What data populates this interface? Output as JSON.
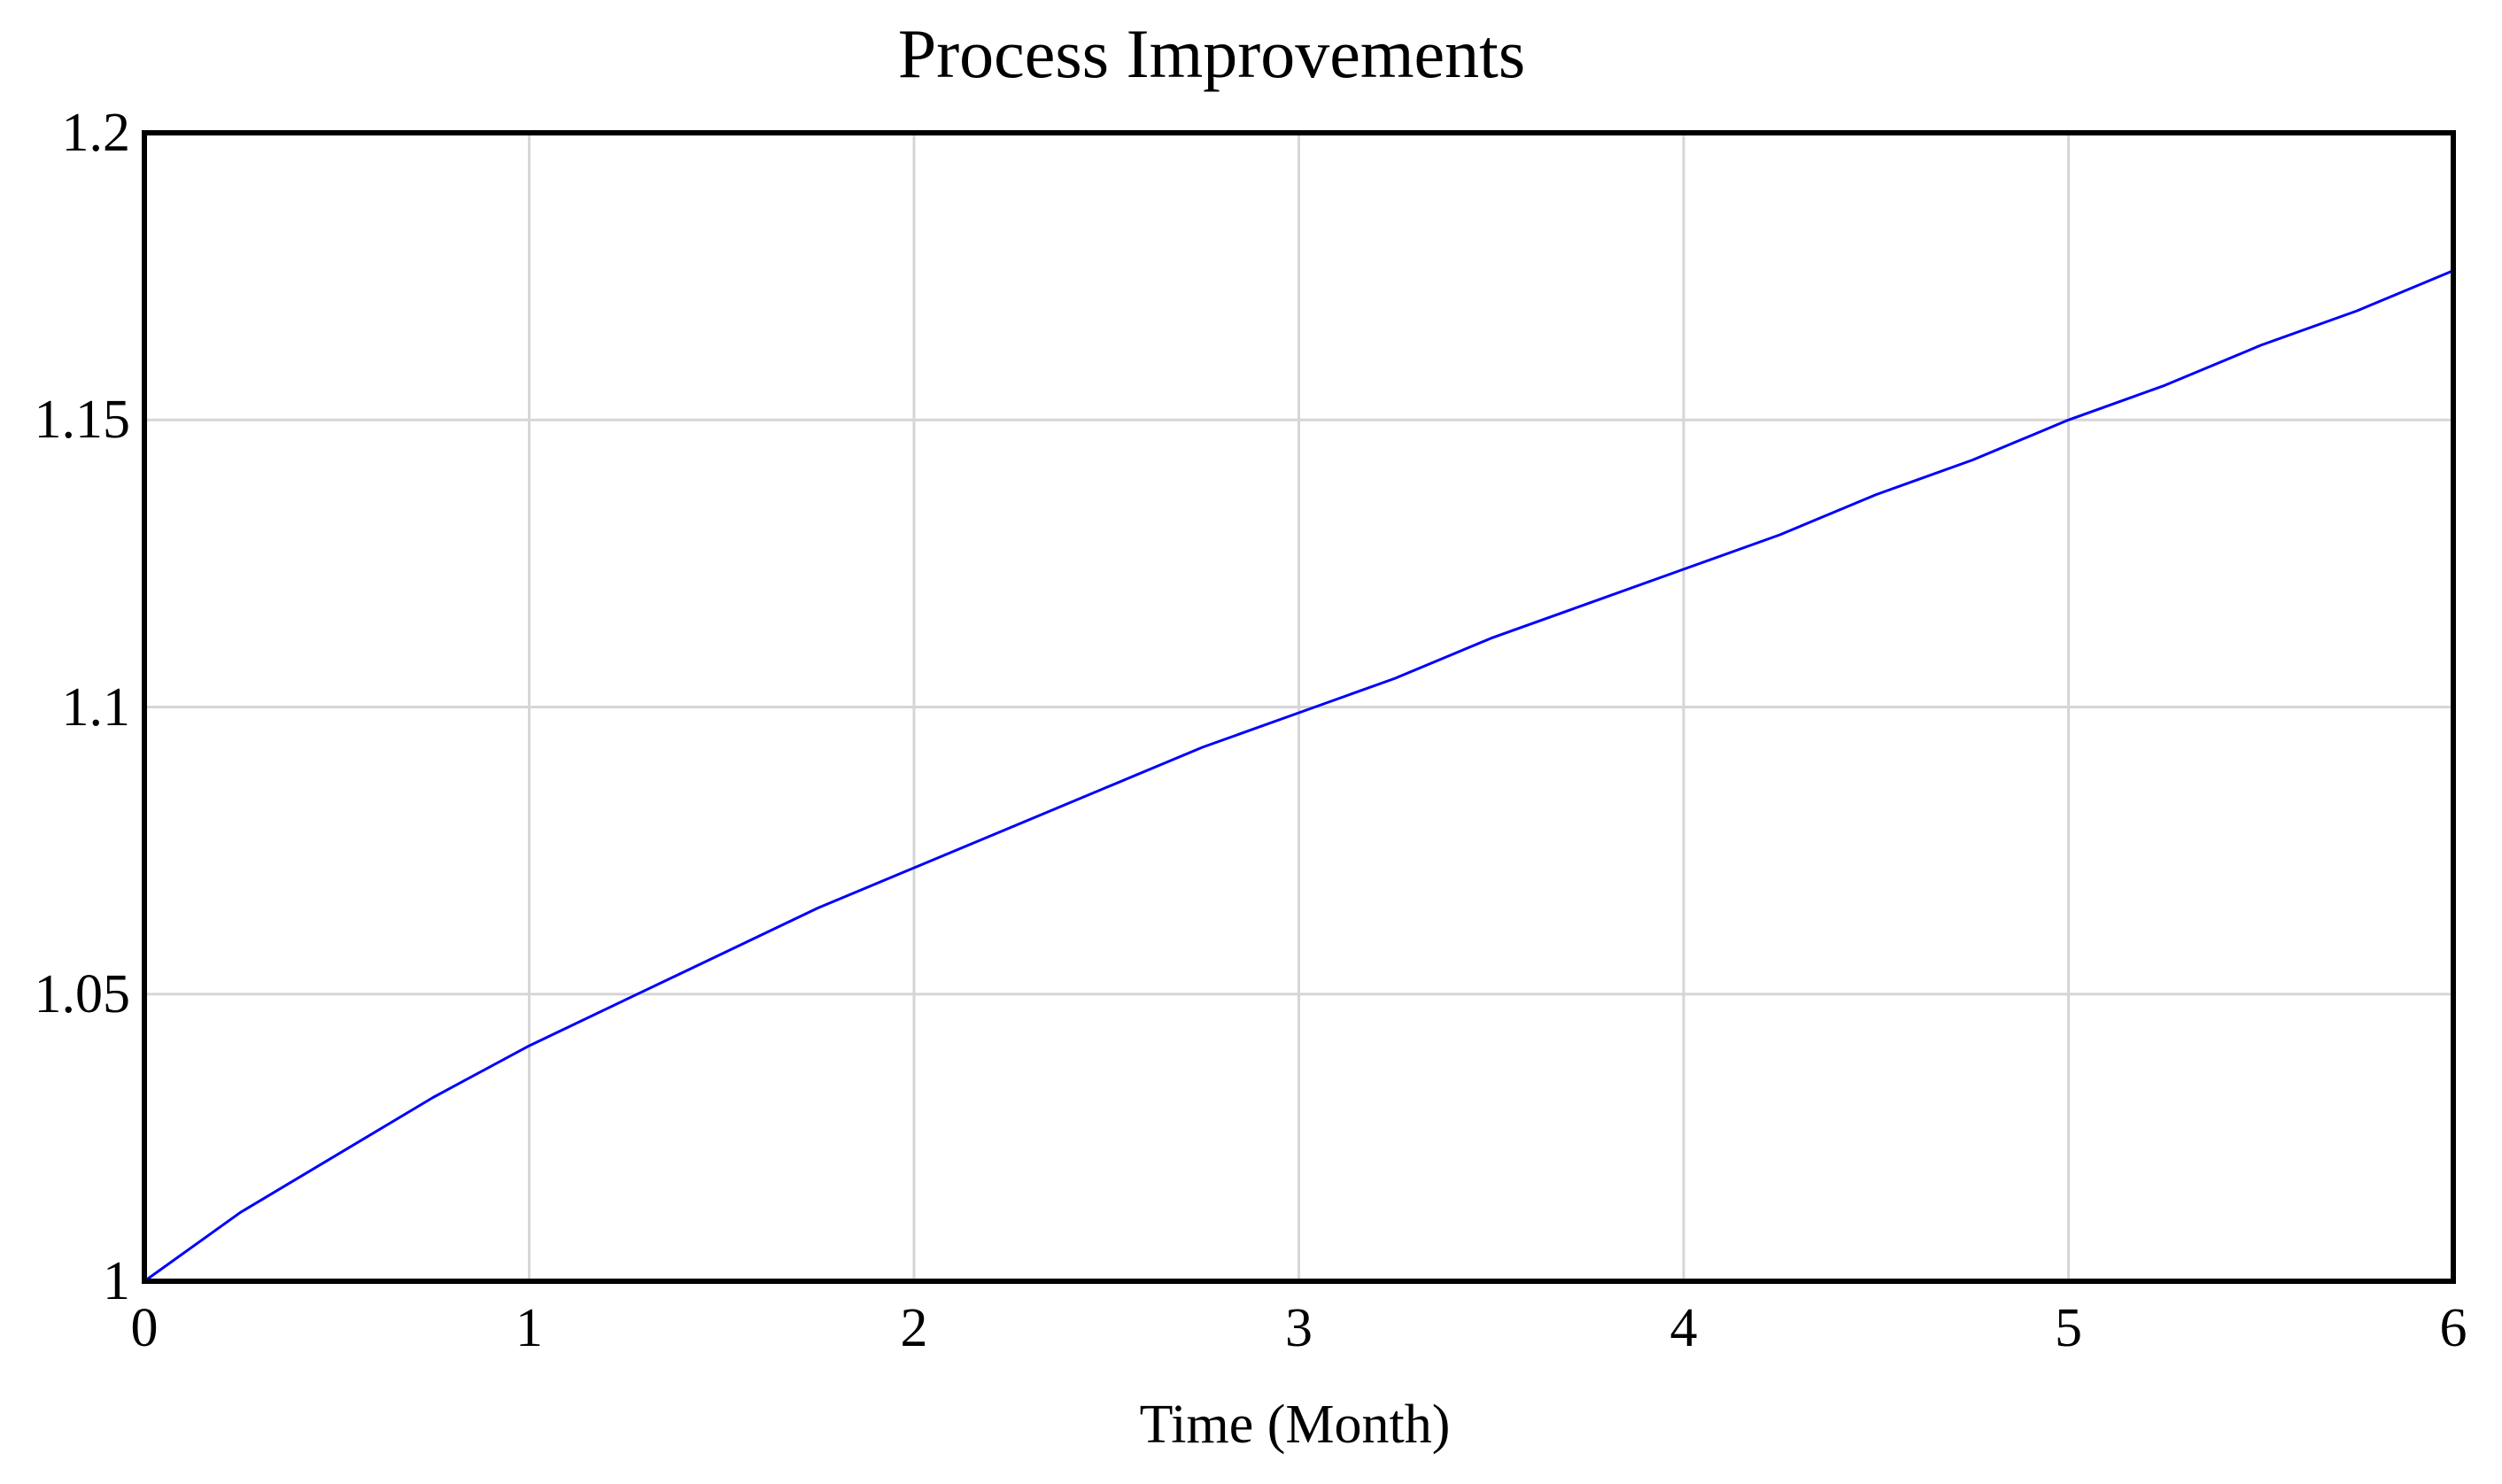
{
  "chart_data": {
    "type": "line",
    "title": "Process Improvements",
    "xlabel": "Time (Month)",
    "ylabel": "",
    "xlim": [
      0,
      6
    ],
    "ylim": [
      1.0,
      1.2
    ],
    "x_ticks": [
      0,
      1,
      2,
      3,
      4,
      5,
      6
    ],
    "x_tick_labels": [
      "0",
      "1",
      "2",
      "3",
      "4",
      "5",
      "6"
    ],
    "y_ticks": [
      1.0,
      1.05,
      1.1,
      1.15,
      1.2
    ],
    "y_tick_labels": [
      "1",
      "1.05",
      "1.1",
      "1.15",
      "1.2"
    ],
    "grid": true,
    "legend_position": "none",
    "series": [
      {
        "name": "Process Improvements",
        "color": "#0000ff",
        "x": [
          0,
          0.25,
          0.5,
          0.75,
          1,
          1.25,
          1.5,
          1.75,
          2,
          2.25,
          2.5,
          2.75,
          3,
          3.25,
          3.5,
          3.75,
          4,
          4.25,
          4.5,
          4.75,
          5,
          5.25,
          5.5,
          5.75,
          6
        ],
        "y": [
          1.0,
          1.012,
          1.022,
          1.032,
          1.041,
          1.049,
          1.057,
          1.065,
          1.072,
          1.079,
          1.086,
          1.093,
          1.099,
          1.105,
          1.112,
          1.118,
          1.124,
          1.13,
          1.137,
          1.143,
          1.15,
          1.156,
          1.163,
          1.169,
          1.176
        ]
      }
    ],
    "colors": {
      "background": "#ffffff",
      "plot_border": "#000000",
      "gridline": "#d6d6d6",
      "text": "#000000"
    }
  }
}
